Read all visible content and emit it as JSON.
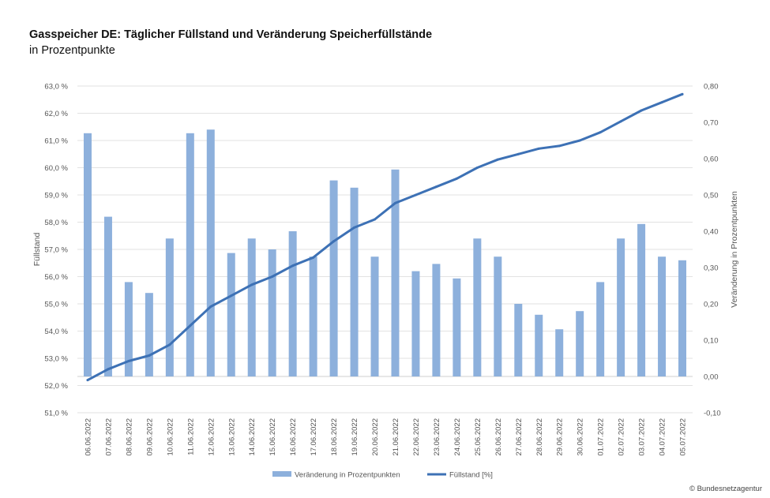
{
  "header": {
    "title": "Gasspeicher DE: Täglicher Füllstand und Veränderung Speicherfüllstände",
    "subtitle": "in Prozentpunkte"
  },
  "credit": "© Bundesnetzagentur",
  "colors": {
    "bars": "#8db0dc",
    "line": "#3d71b5",
    "grid": "#e2e2e2"
  },
  "chart_data": {
    "type": "bar",
    "title": "Gasspeicher DE: Täglicher Füllstand und Veränderung Speicherfüllstände",
    "subtitle": "in Prozentpunkte",
    "categories": [
      "06.06.2022",
      "07.06.2022",
      "08.06.2022",
      "09.06.2022",
      "10.06.2022",
      "11.06.2022",
      "12.06.2022",
      "13.06.2022",
      "14.06.2022",
      "15.06.2022",
      "16.06.2022",
      "17.06.2022",
      "18.06.2022",
      "19.06.2022",
      "20.06.2022",
      "21.06.2022",
      "22.06.2022",
      "23.06.2022",
      "24.06.2022",
      "25.06.2022",
      "26.06.2022",
      "27.06.2022",
      "28.06.2022",
      "29.06.2022",
      "30.06.2022",
      "01.07.2022",
      "02.07.2022",
      "03.07.2022",
      "04.07.2022",
      "05.07.2022"
    ],
    "series": [
      {
        "name": "Veränderung in Prozentpunkten",
        "type": "bar",
        "axis": "right",
        "values": [
          0.67,
          0.44,
          0.26,
          0.23,
          0.38,
          0.67,
          0.68,
          0.34,
          0.38,
          0.35,
          0.4,
          0.33,
          0.54,
          0.52,
          0.33,
          0.57,
          0.29,
          0.31,
          0.27,
          0.38,
          0.33,
          0.2,
          0.17,
          0.13,
          0.18,
          0.26,
          0.38,
          0.42,
          0.33,
          0.32
        ]
      },
      {
        "name": "Füllstand [%]",
        "type": "line",
        "axis": "left",
        "values": [
          52.2,
          52.6,
          52.9,
          53.1,
          53.5,
          54.2,
          54.9,
          55.3,
          55.7,
          56.0,
          56.4,
          56.7,
          57.3,
          57.8,
          58.1,
          58.7,
          59.0,
          59.3,
          59.6,
          60.0,
          60.3,
          60.5,
          60.7,
          60.8,
          61.0,
          61.3,
          61.7,
          62.1,
          62.4,
          62.7
        ]
      }
    ],
    "ylabel": "Füllstand",
    "y2label": "Veränderung in Prozentpunkten",
    "ylim": [
      51.0,
      63.0
    ],
    "y2lim": [
      -0.1,
      0.8
    ],
    "yticks": [
      "63,0 %",
      "62,0 %",
      "61,0 %",
      "60,0 %",
      "59,0 %",
      "58,0 %",
      "57,0 %",
      "56,0 %",
      "55,0 %",
      "54,0 %",
      "53,0 %",
      "52,0 %",
      "51,0 %"
    ],
    "y2ticks": [
      "0,80",
      "0,70",
      "0,60",
      "0,50",
      "0,40",
      "0,30",
      "0,20",
      "0,10",
      "0,00",
      "-0,10"
    ],
    "grid": true,
    "legend_position": "bottom"
  }
}
